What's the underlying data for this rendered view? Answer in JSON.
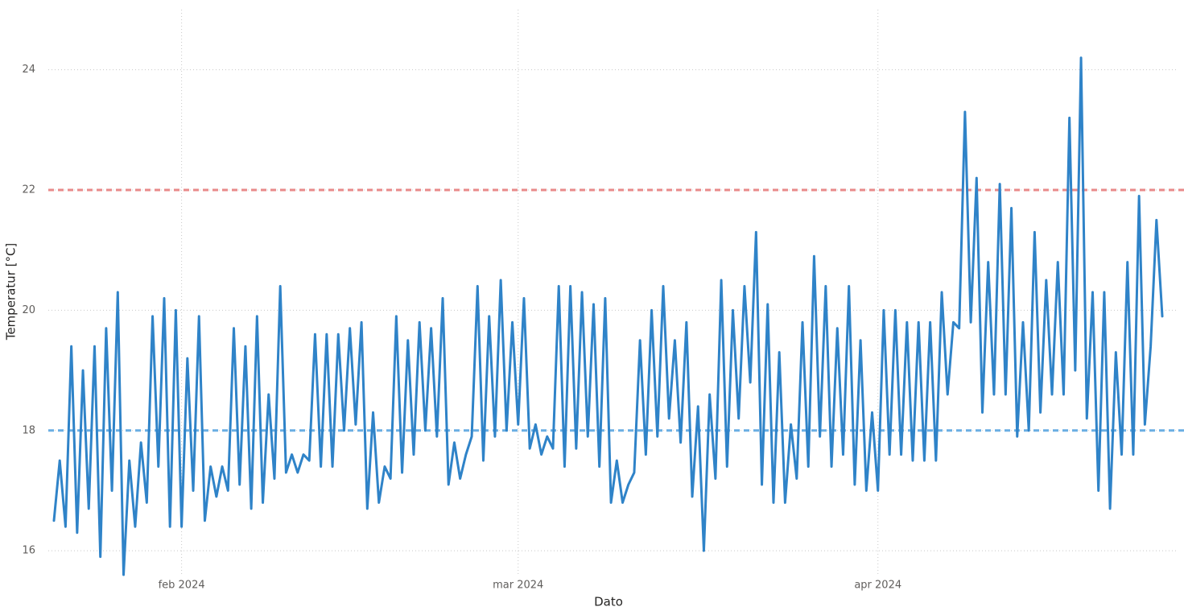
{
  "chart_data": {
    "type": "line",
    "x_label": "Dato",
    "y_label": "Temperatur [°C]",
    "categories": [
      null,
      null,
      null,
      null,
      null,
      null,
      null,
      null,
      null,
      null,
      null,
      null,
      null,
      null,
      null,
      null,
      null,
      null,
      null,
      null,
      null,
      null,
      "feb 2024",
      null,
      null,
      null,
      null,
      null,
      null,
      null,
      null,
      null,
      null,
      null,
      null,
      null,
      null,
      null,
      null,
      null,
      null,
      null,
      null,
      null,
      null,
      null,
      null,
      null,
      null,
      null,
      null,
      null,
      null,
      null,
      null,
      null,
      null,
      null,
      null,
      null,
      null,
      null,
      null,
      null,
      null,
      null,
      null,
      null,
      null,
      null,
      null,
      null,
      null,
      null,
      null,
      null,
      null,
      null,
      null,
      null,
      "mar 2024",
      null,
      null,
      null,
      null,
      null,
      null,
      null,
      null,
      null,
      null,
      null,
      null,
      null,
      null,
      null,
      null,
      null,
      null,
      null,
      null,
      null,
      null,
      null,
      null,
      null,
      null,
      null,
      null,
      null,
      null,
      null,
      null,
      null,
      null,
      null,
      null,
      null,
      null,
      null,
      null,
      null,
      null,
      null,
      null,
      null,
      null,
      null,
      null,
      null,
      null,
      null,
      null,
      null,
      null,
      null,
      null,
      null,
      null,
      null,
      null,
      null,
      "apr 2024",
      null,
      null,
      null,
      null,
      null,
      null,
      null,
      null,
      null,
      null,
      null,
      null,
      null,
      null,
      null,
      null,
      null,
      null,
      null,
      null,
      null,
      null,
      null,
      null,
      null,
      null,
      null,
      null,
      null,
      null,
      null,
      null,
      null,
      null,
      null,
      null,
      null,
      null,
      null,
      null,
      null,
      null,
      null,
      null,
      null,
      null,
      null,
      null,
      null
    ],
    "values": [
      16.5,
      17.5,
      16.4,
      19.4,
      16.3,
      19.0,
      16.7,
      19.4,
      15.9,
      19.7,
      17.0,
      20.3,
      15.6,
      17.5,
      16.4,
      17.8,
      16.8,
      19.9,
      17.4,
      20.2,
      16.4,
      20.0,
      16.4,
      19.2,
      17.0,
      19.9,
      16.5,
      17.4,
      16.9,
      17.4,
      17.0,
      19.7,
      17.1,
      19.4,
      16.7,
      19.9,
      16.8,
      18.6,
      17.2,
      20.4,
      17.3,
      17.6,
      17.3,
      17.6,
      17.5,
      19.6,
      17.4,
      19.6,
      17.4,
      19.6,
      18.0,
      19.7,
      18.1,
      19.8,
      16.7,
      18.3,
      16.8,
      17.4,
      17.2,
      19.9,
      17.3,
      19.5,
      17.6,
      19.8,
      18.0,
      19.7,
      17.9,
      20.2,
      17.1,
      17.8,
      17.2,
      17.6,
      17.9,
      20.4,
      17.5,
      19.9,
      17.9,
      20.5,
      18.0,
      19.8,
      18.1,
      20.2,
      17.7,
      18.1,
      17.6,
      17.9,
      17.7,
      20.4,
      17.4,
      20.4,
      17.7,
      20.3,
      17.9,
      20.1,
      17.4,
      20.2,
      16.8,
      17.5,
      16.8,
      17.1,
      17.3,
      19.5,
      17.6,
      20.0,
      17.9,
      20.4,
      18.2,
      19.5,
      17.8,
      19.8,
      16.9,
      18.4,
      16.0,
      18.6,
      17.2,
      20.5,
      17.4,
      20.0,
      18.2,
      20.4,
      18.8,
      21.3,
      17.1,
      20.1,
      16.8,
      19.3,
      16.8,
      18.1,
      17.2,
      19.8,
      17.4,
      20.9,
      17.9,
      20.4,
      17.4,
      19.7,
      17.6,
      20.4,
      17.1,
      19.5,
      17.0,
      18.3,
      17.0,
      20.0,
      17.6,
      20.0,
      17.6,
      19.8,
      17.5,
      19.8,
      17.5,
      19.8,
      17.5,
      20.3,
      18.6,
      19.8,
      19.7,
      23.3,
      19.8,
      22.2,
      18.3,
      20.8,
      18.6,
      22.1,
      18.6,
      21.7,
      17.9,
      19.8,
      18.0,
      21.3,
      18.3,
      20.5,
      18.6,
      20.8,
      18.6,
      23.2,
      19.0,
      24.2,
      18.2,
      20.3,
      17.0,
      20.3,
      16.7,
      19.3,
      17.6,
      20.8,
      17.6,
      21.9,
      18.1,
      19.4,
      21.5,
      19.9
    ],
    "color": "#2f83c8",
    "ylim": [
      15.6,
      25.0
    ],
    "yticks": [
      16,
      18,
      20,
      22,
      24
    ],
    "grid": true,
    "reference_lines": [
      {
        "value": 22,
        "color": "#e88a8a"
      },
      {
        "value": 18,
        "color": "#6aaee3"
      }
    ]
  }
}
